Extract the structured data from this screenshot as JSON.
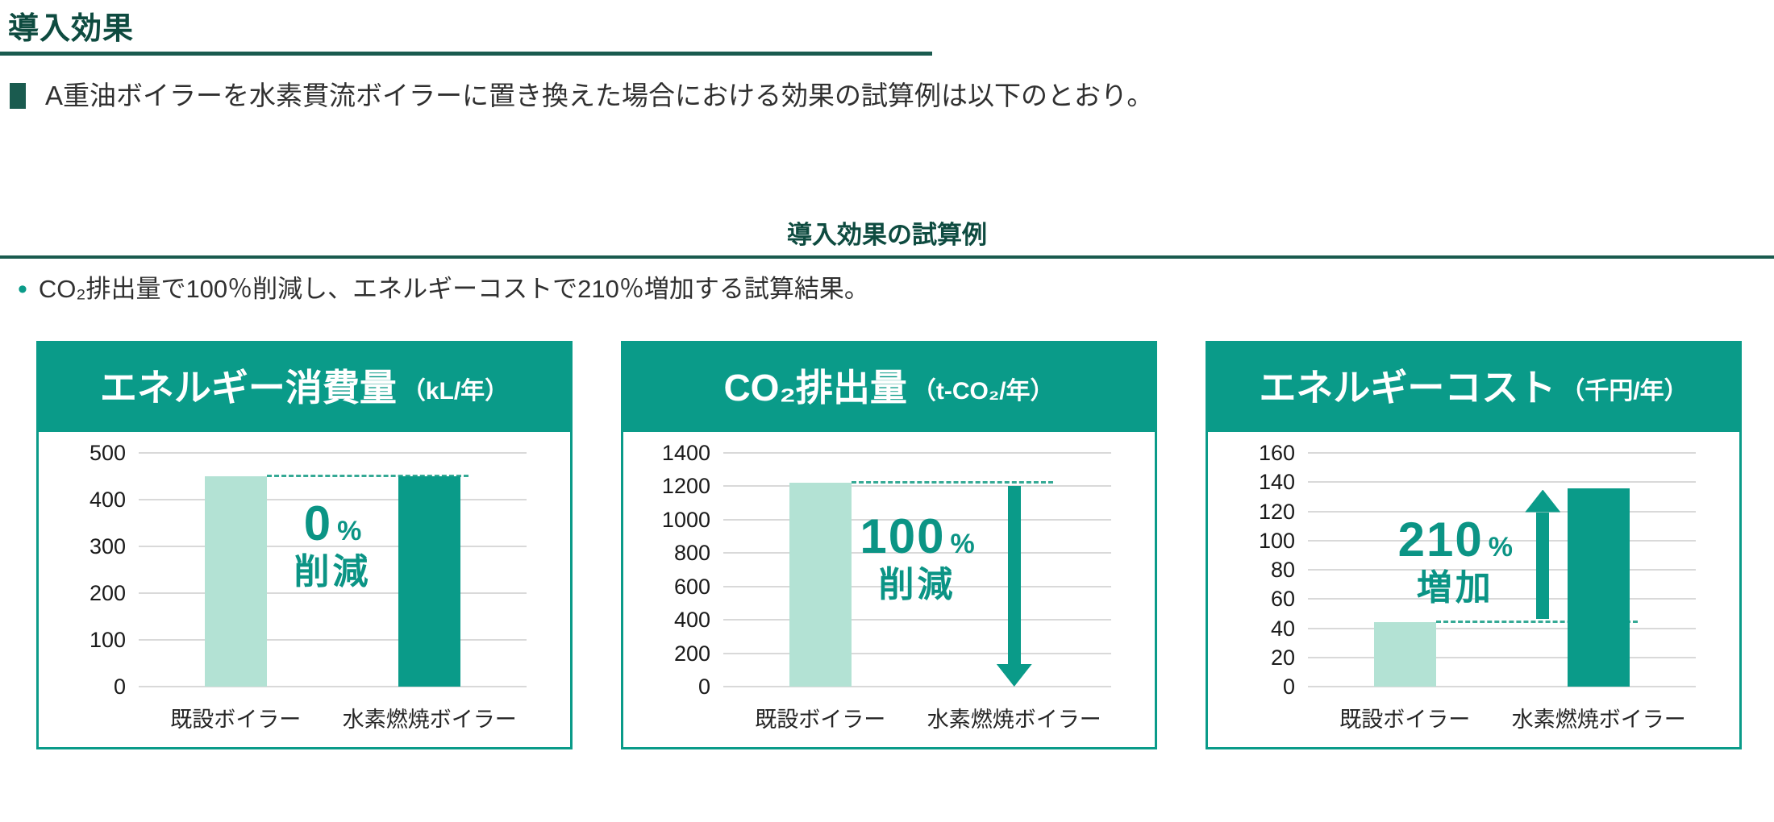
{
  "header": {
    "title": "導入効果",
    "bullet_text": "A重油ボイラーを水素貫流ボイラーに置き換えた場合における効果の試算例は以下のとおり。"
  },
  "section": {
    "title": "導入効果の試算例",
    "note_marker": "•",
    "note_text": "CO₂排出量で100％削減し、エネルギーコストで210％増加する試算結果。"
  },
  "colors": {
    "accent_teal": "#0a9b89",
    "light_bar": "#b3e2d4",
    "dark_bar": "#0a9b89",
    "dark_heading": "#0e4b40",
    "rule_line": "#1a5b4f",
    "gridline": "#d9d9d9",
    "dashed_line": "#35a995",
    "annotation_text": "#0b9485",
    "body_text": "#303030"
  },
  "chart_data": [
    {
      "type": "bar",
      "title": "エネルギー消費量",
      "unit": "（kL/年）",
      "categories": [
        "既設ボイラー",
        "水素燃焼ボイラー"
      ],
      "values": [
        450,
        450
      ],
      "ylim": [
        0,
        500
      ],
      "ystep": 100,
      "grid": true,
      "dashed_level": 450,
      "annotation": {
        "value": "0",
        "percent": "%",
        "label": "削減"
      },
      "ann_x_frac": 0.5,
      "ann_top": 84,
      "arrow": null
    },
    {
      "type": "bar",
      "title": "CO₂排出量",
      "unit": "（t-CO₂/年）",
      "categories": [
        "既設ボイラー",
        "水素燃焼ボイラー"
      ],
      "values": [
        1220,
        0
      ],
      "ylim": [
        0,
        1400
      ],
      "ystep": 200,
      "grid": true,
      "dashed_level": 1220,
      "annotation": {
        "value": "100",
        "percent": "%",
        "label": "削減"
      },
      "ann_x_frac": 0.5,
      "ann_top": 100,
      "arrow": {
        "direction": "down"
      }
    },
    {
      "type": "bar",
      "title": "エネルギーコスト",
      "unit": "（千円/年）",
      "categories": [
        "既設ボイラー",
        "水素燃焼ボイラー"
      ],
      "values": [
        44,
        136
      ],
      "ylim": [
        0,
        160
      ],
      "ystep": 20,
      "grid": true,
      "dashed_level": 44,
      "annotation": {
        "value": "210",
        "percent": "%",
        "label": "増加"
      },
      "ann_x_frac": 0.38,
      "ann_top": 104,
      "arrow": {
        "direction": "up"
      }
    }
  ]
}
